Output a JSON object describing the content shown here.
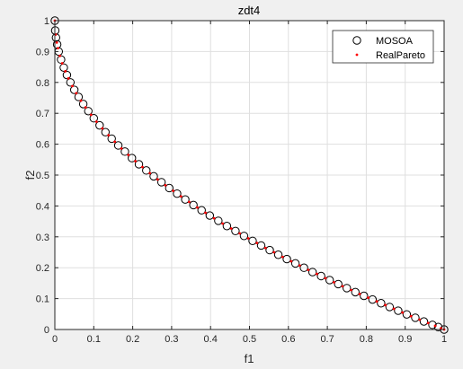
{
  "chart_data": {
    "type": "scatter",
    "title": "zdt4",
    "xlabel": "f1",
    "ylabel": "f2",
    "xlim": [
      0,
      1
    ],
    "ylim": [
      0,
      1
    ],
    "xticks": [
      0,
      0.1,
      0.2,
      0.3,
      0.4,
      0.5,
      0.6,
      0.7,
      0.8,
      0.9,
      1
    ],
    "yticks": [
      0,
      0.1,
      0.2,
      0.3,
      0.4,
      0.5,
      0.6,
      0.7,
      0.8,
      0.9,
      1
    ],
    "xtick_labels": [
      "0",
      "0.1",
      "0.2",
      "0.3",
      "0.4",
      "0.5",
      "0.6",
      "0.7",
      "0.8",
      "0.9",
      "1"
    ],
    "ytick_labels": [
      "0",
      "0.1",
      "0.2",
      "0.3",
      "0.4",
      "0.5",
      "0.6",
      "0.7",
      "0.8",
      "0.9",
      "1"
    ],
    "grid": true,
    "legend_position": "top-right",
    "series": [
      {
        "name": "MOSOA",
        "marker": "circle-open",
        "color": "#000000",
        "x": [
          0,
          0.001,
          0.003,
          0.006,
          0.01,
          0.016,
          0.023,
          0.031,
          0.04,
          0.05,
          0.061,
          0.073,
          0.086,
          0.1,
          0.115,
          0.13,
          0.146,
          0.163,
          0.18,
          0.198,
          0.216,
          0.235,
          0.254,
          0.274,
          0.294,
          0.314,
          0.335,
          0.356,
          0.377,
          0.398,
          0.42,
          0.442,
          0.464,
          0.486,
          0.508,
          0.53,
          0.552,
          0.574,
          0.596,
          0.618,
          0.64,
          0.662,
          0.684,
          0.706,
          0.728,
          0.75,
          0.772,
          0.794,
          0.816,
          0.838,
          0.86,
          0.882,
          0.904,
          0.926,
          0.948,
          0.97,
          0.985,
          1
        ],
        "y": [
          1,
          0.968,
          0.945,
          0.923,
          0.9,
          0.874,
          0.848,
          0.824,
          0.8,
          0.776,
          0.753,
          0.73,
          0.707,
          0.684,
          0.661,
          0.639,
          0.618,
          0.596,
          0.576,
          0.555,
          0.535,
          0.515,
          0.496,
          0.477,
          0.458,
          0.44,
          0.421,
          0.403,
          0.386,
          0.369,
          0.352,
          0.335,
          0.319,
          0.303,
          0.287,
          0.272,
          0.257,
          0.242,
          0.228,
          0.214,
          0.2,
          0.186,
          0.173,
          0.16,
          0.147,
          0.134,
          0.121,
          0.109,
          0.097,
          0.085,
          0.073,
          0.061,
          0.049,
          0.038,
          0.026,
          0.015,
          0.008,
          0
        ]
      },
      {
        "name": "RealPareto",
        "marker": "dot",
        "color": "#ff0000",
        "x": [
          0,
          0.002,
          0.005,
          0.008,
          0.013,
          0.019,
          0.027,
          0.035,
          0.045,
          0.055,
          0.067,
          0.079,
          0.093,
          0.107,
          0.122,
          0.138,
          0.154,
          0.171,
          0.189,
          0.207,
          0.225,
          0.244,
          0.264,
          0.284,
          0.304,
          0.324,
          0.345,
          0.366,
          0.387,
          0.409,
          0.431,
          0.453,
          0.475,
          0.497,
          0.519,
          0.541,
          0.563,
          0.585,
          0.607,
          0.629,
          0.651,
          0.673,
          0.695,
          0.717,
          0.739,
          0.761,
          0.783,
          0.805,
          0.827,
          0.849,
          0.871,
          0.893,
          0.915,
          0.937,
          0.959,
          0.977,
          0.992,
          1
        ],
        "y": [
          1,
          0.955,
          0.929,
          0.911,
          0.886,
          0.862,
          0.836,
          0.813,
          0.788,
          0.765,
          0.741,
          0.719,
          0.695,
          0.673,
          0.651,
          0.629,
          0.608,
          0.586,
          0.565,
          0.545,
          0.526,
          0.506,
          0.486,
          0.467,
          0.449,
          0.431,
          0.413,
          0.395,
          0.378,
          0.36,
          0.343,
          0.327,
          0.311,
          0.295,
          0.28,
          0.264,
          0.25,
          0.235,
          0.221,
          0.207,
          0.193,
          0.18,
          0.166,
          0.153,
          0.14,
          0.128,
          0.115,
          0.103,
          0.091,
          0.079,
          0.067,
          0.055,
          0.043,
          0.032,
          0.021,
          0.012,
          0.004,
          0
        ]
      }
    ]
  }
}
